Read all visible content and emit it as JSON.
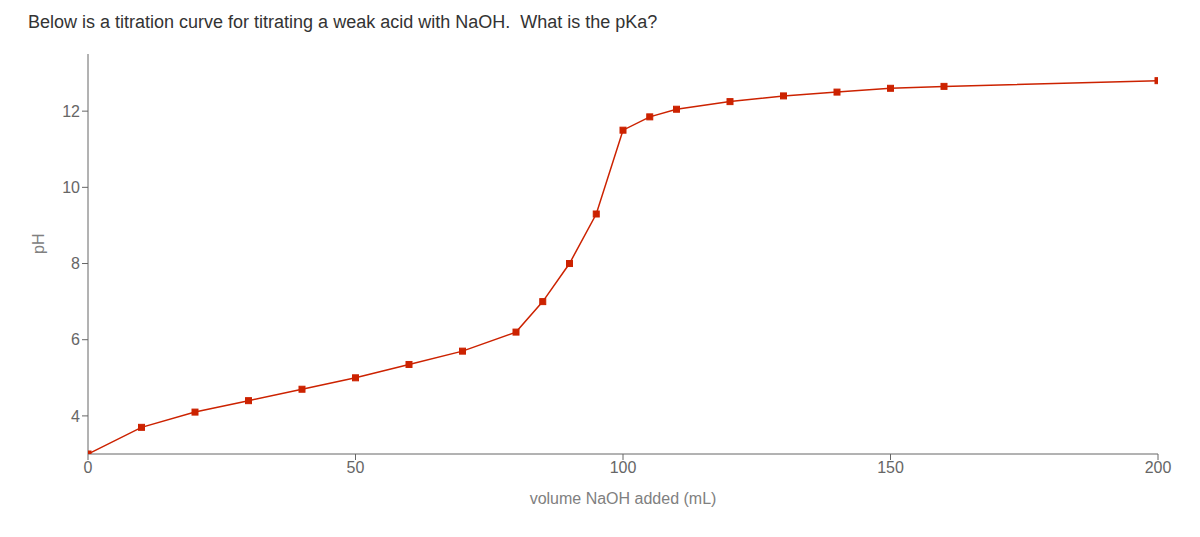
{
  "chart_data": {
    "type": "line",
    "title": "Below is a titration curve for titrating a weak acid with NaOH.  What is the pKa?",
    "x_label": "volume NaOH added (mL)",
    "y_label": "pH",
    "x": [
      0,
      10,
      20,
      30,
      40,
      50,
      60,
      70,
      80,
      85,
      90,
      95,
      100,
      105,
      110,
      120,
      130,
      140,
      150,
      160,
      200
    ],
    "values": [
      3.0,
      3.7,
      4.1,
      4.4,
      4.7,
      5.0,
      5.35,
      5.7,
      6.2,
      7.0,
      8.0,
      9.3,
      11.5,
      11.85,
      12.05,
      12.25,
      12.4,
      12.5,
      12.6,
      12.65,
      12.8
    ],
    "color": "#cc2200",
    "marker": "square",
    "xlim": [
      0,
      200
    ],
    "ylim": [
      3.0,
      13.5
    ],
    "xticks": [
      0,
      50,
      100,
      150,
      200
    ],
    "yticks": [
      4,
      6,
      8,
      10,
      12
    ],
    "grid": false
  }
}
